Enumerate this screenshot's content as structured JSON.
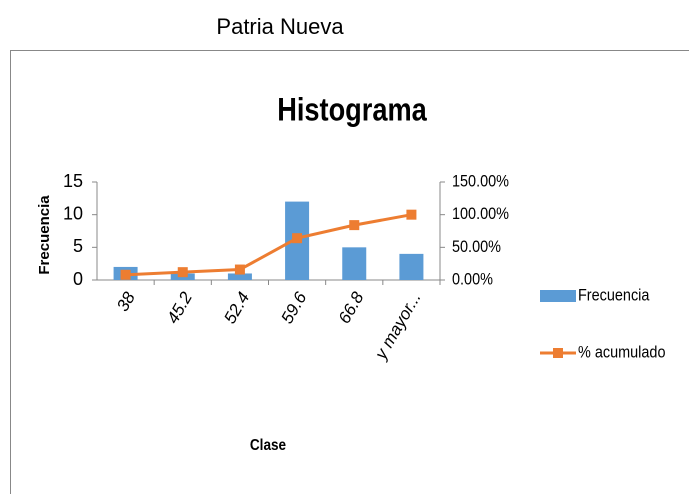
{
  "page_title": "Patria Nueva",
  "chart_data": {
    "type": "bar-line",
    "title": "Histograma",
    "x_label": "Clase",
    "y_label": "Frecuencia",
    "categories": [
      "38",
      "45.2",
      "52.4",
      "59.6",
      "66.8",
      "y mayor..."
    ],
    "series": [
      {
        "name": "Frecuencia",
        "color": "#5b9bd5",
        "type": "bar",
        "values": [
          2,
          1,
          1,
          12,
          5,
          4
        ]
      },
      {
        "name": "% acumulado",
        "color": "#ed7d31",
        "type": "line",
        "axis": "y2",
        "values": [
          8,
          12,
          16,
          64,
          84,
          100
        ]
      }
    ],
    "ylim": [
      0,
      15
    ],
    "yticks": [
      0,
      5,
      10,
      15
    ],
    "y2lim": [
      0,
      150
    ],
    "y2ticks": [
      {
        "value": 0,
        "label": "0.00%"
      },
      {
        "value": 50,
        "label": "50.00%"
      },
      {
        "value": 100,
        "label": "100.00%"
      },
      {
        "value": 150,
        "label": "150.00%"
      }
    ],
    "legend": "right",
    "grid": false
  }
}
